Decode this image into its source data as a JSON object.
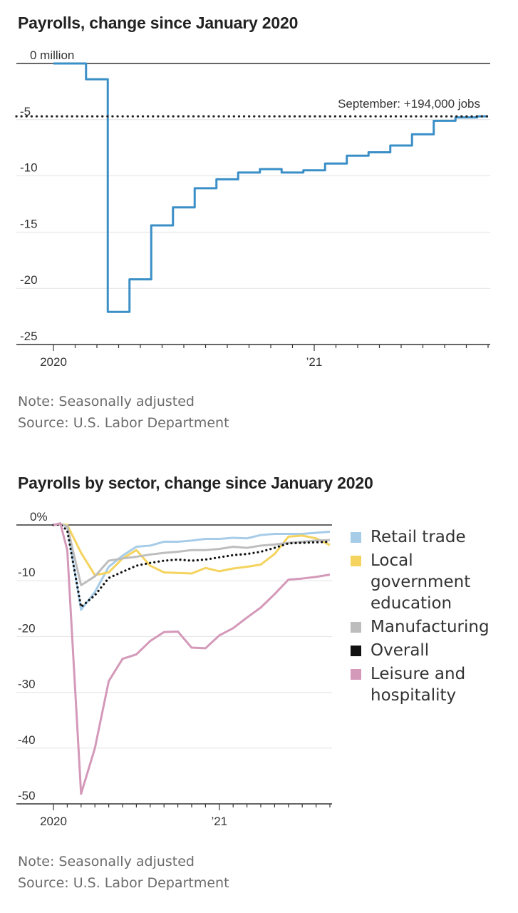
{
  "chart_data": [
    {
      "type": "line",
      "title": "Payrolls, change since January 2020",
      "ylim": [
        -25,
        0
      ],
      "y_ticks": [
        {
          "value": 0,
          "label": "0 million"
        },
        {
          "value": -5,
          "label": "-5"
        },
        {
          "value": -10,
          "label": "-10"
        },
        {
          "value": -15,
          "label": "-15"
        },
        {
          "value": -20,
          "label": "-20"
        },
        {
          "value": -25,
          "label": "-25"
        }
      ],
      "x_labels": [
        {
          "month": 0,
          "label": "2020"
        },
        {
          "month": 12,
          "label": "’21"
        }
      ],
      "grid": true,
      "step": true,
      "series": [
        {
          "color": "#3a8fc7",
          "x": [
            0,
            1,
            2,
            3,
            4,
            5,
            6,
            7,
            8,
            9,
            10,
            11,
            12,
            13,
            14,
            15,
            16,
            17,
            18,
            19,
            20
          ],
          "y": [
            0,
            0,
            -1.4,
            -22.1,
            -19.2,
            -14.4,
            -12.8,
            -11.1,
            -10.3,
            -9.7,
            -9.4,
            -9.7,
            -9.5,
            -8.9,
            -8.2,
            -7.9,
            -7.3,
            -6.3,
            -5.1,
            -4.8,
            -4.7
          ]
        }
      ],
      "annotation": {
        "label": "September: +194,000 jobs",
        "value": -4.7
      },
      "note": "Note: Seasonally adjusted",
      "source": "Source: U.S. Labor Department"
    },
    {
      "type": "line",
      "title": "Payrolls by sector, change since January 2020",
      "ylim": [
        -50,
        0
      ],
      "y_ticks": [
        {
          "value": 0,
          "label": "0%"
        },
        {
          "value": -10,
          "label": "-10"
        },
        {
          "value": -20,
          "label": "-20"
        },
        {
          "value": -30,
          "label": "-30"
        },
        {
          "value": -40,
          "label": "-40"
        },
        {
          "value": -50,
          "label": "-50"
        }
      ],
      "x_labels": [
        {
          "month": 0,
          "label": "2020"
        },
        {
          "month": 12,
          "label": "’21"
        }
      ],
      "grid": true,
      "legend_position": "right",
      "series": [
        {
          "name": "Retail trade",
          "color": "#a7cce8",
          "x": [
            0,
            0.5,
            1,
            2,
            3,
            4,
            5,
            6,
            7,
            8,
            9,
            10,
            11,
            12,
            13,
            14,
            15,
            16,
            17,
            18,
            19,
            20
          ],
          "y": [
            0,
            0.2,
            -0.3,
            -15.2,
            -12,
            -7.5,
            -5.5,
            -3.9,
            -3.7,
            -3,
            -3,
            -2.8,
            -2.5,
            -2.5,
            -2.3,
            -2.4,
            -1.8,
            -1.6,
            -1.6,
            -1.6,
            -1.4,
            -1.2
          ]
        },
        {
          "name": "Local government education",
          "color": "#f4d35e",
          "x": [
            0,
            0.5,
            1,
            2,
            3,
            4,
            5,
            6,
            7,
            8,
            9,
            10,
            11,
            12,
            13,
            14,
            15,
            16,
            17,
            18,
            19,
            20
          ],
          "y": [
            0,
            0.1,
            0,
            -5,
            -9,
            -8.5,
            -6,
            -4.5,
            -7.3,
            -8.5,
            -8.6,
            -8.7,
            -7.7,
            -8.3,
            -7.8,
            -7.5,
            -7.1,
            -5.2,
            -2.1,
            -1.9,
            -2.4,
            -3.6
          ]
        },
        {
          "name": "Manufacturing",
          "color": "#bdbdbd",
          "x": [
            0,
            0.5,
            1,
            2,
            3,
            4,
            5,
            6,
            7,
            8,
            9,
            10,
            11,
            12,
            13,
            14,
            15,
            16,
            17,
            18,
            19,
            20
          ],
          "y": [
            0,
            0.1,
            -0.2,
            -10.8,
            -9.2,
            -6.4,
            -6,
            -5.7,
            -5.3,
            -5,
            -4.8,
            -4.5,
            -4.5,
            -4.3,
            -3.9,
            -4.1,
            -3.7,
            -3.5,
            -3.2,
            -3,
            -2.8,
            -2.7
          ]
        },
        {
          "name": "Overall",
          "color": "#111111",
          "dotted": true,
          "x": [
            0,
            0.5,
            1,
            2,
            3,
            4,
            5,
            6,
            7,
            8,
            9,
            10,
            11,
            12,
            13,
            14,
            15,
            16,
            17,
            18,
            19,
            20
          ],
          "y": [
            0,
            0.1,
            -1,
            -14.7,
            -12.6,
            -9.5,
            -8.4,
            -7.3,
            -6.8,
            -6.4,
            -6.2,
            -6.4,
            -6.2,
            -5.8,
            -5.4,
            -5.2,
            -4.8,
            -4.1,
            -3.3,
            -3.2,
            -3.1,
            -3
          ]
        },
        {
          "name": "Leisure and hospitality",
          "color": "#d499b9",
          "x": [
            0,
            0.5,
            1,
            2,
            3,
            4,
            5,
            6,
            7,
            8,
            9,
            10,
            11,
            12,
            13,
            14,
            15,
            16,
            17,
            18,
            19,
            20
          ],
          "y": [
            0,
            0.3,
            -4.5,
            -48.2,
            -40,
            -28,
            -24,
            -23.2,
            -20.8,
            -19.2,
            -19.1,
            -22,
            -22.1,
            -19.8,
            -18.5,
            -16.6,
            -14.8,
            -12.4,
            -9.8,
            -9.6,
            -9.3,
            -8.9
          ]
        }
      ],
      "note": "Note: Seasonally adjusted",
      "source": "Source: U.S. Labor Department"
    }
  ]
}
